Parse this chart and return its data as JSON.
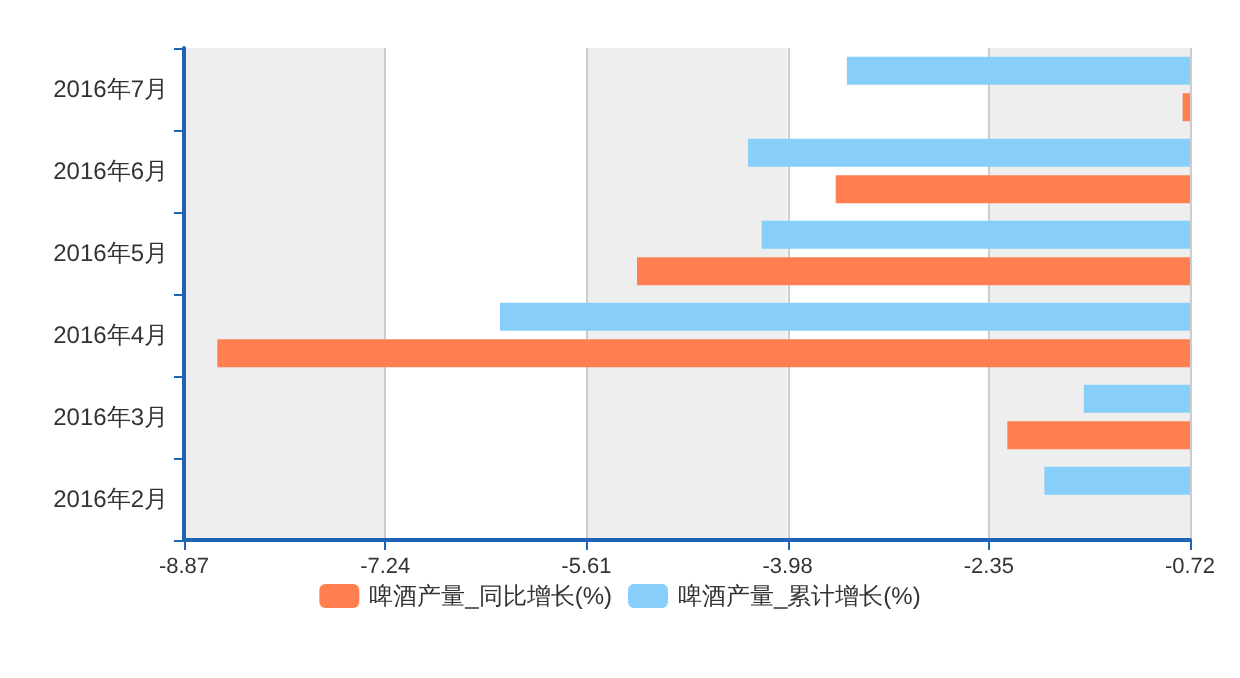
{
  "chart_data": {
    "type": "bar",
    "orientation": "horizontal",
    "categories": [
      "2016年7月",
      "2016年6月",
      "2016年5月",
      "2016年4月",
      "2016年3月",
      "2016年2月"
    ],
    "series": [
      {
        "name": "啤酒产量_同比增长(%)",
        "color": "#ff7f50",
        "values": [
          -0.78,
          -3.59,
          -5.2,
          -8.6,
          -2.2,
          null
        ]
      },
      {
        "name": "啤酒产量_累计增长(%)",
        "color": "#87cefa",
        "values": [
          -3.5,
          -4.3,
          -4.19,
          -6.31,
          -1.58,
          -1.9
        ]
      }
    ],
    "xlim": [
      -8.87,
      -0.72
    ],
    "xticks": [
      -8.87,
      -7.24,
      -5.61,
      -3.98,
      -2.35,
      -0.72
    ],
    "grid": "x",
    "legend": "bottom"
  }
}
